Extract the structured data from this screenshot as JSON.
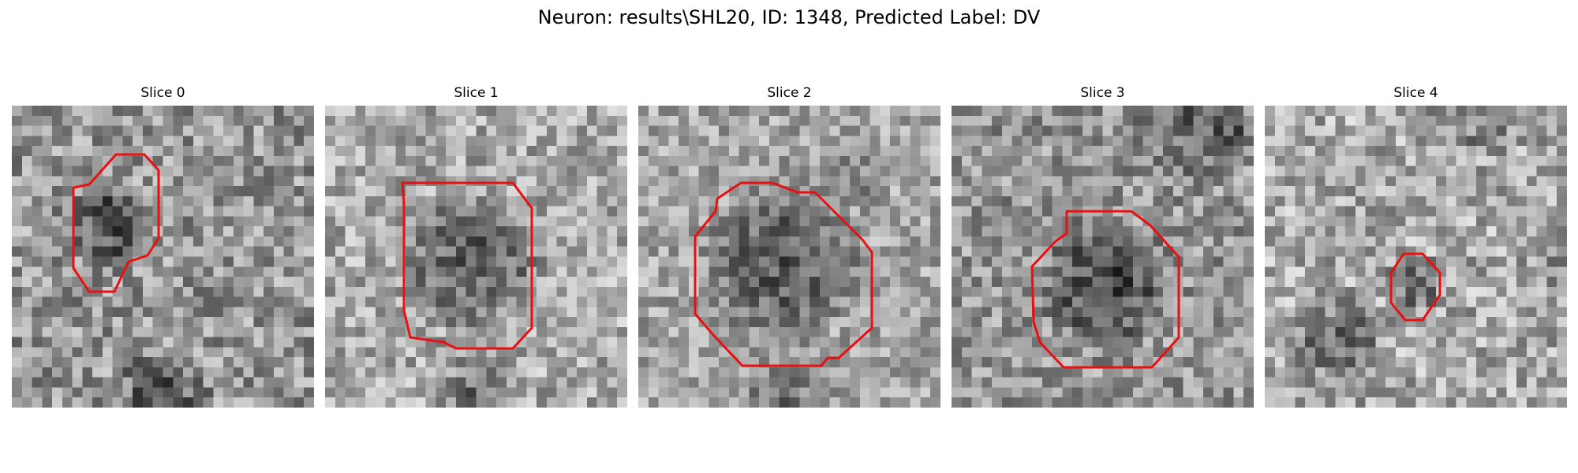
{
  "figure": {
    "title": "Neuron: results\\SHL20, ID: 1348, Predicted Label: DV"
  },
  "contour_color": "#e81010",
  "image_colormap": "gray",
  "grid_size": 30,
  "slices": [
    {
      "label": "Slice 0"
    },
    {
      "label": "Slice 1"
    },
    {
      "label": "Slice 2"
    },
    {
      "label": "Slice 3"
    },
    {
      "label": "Slice 4"
    }
  ]
}
